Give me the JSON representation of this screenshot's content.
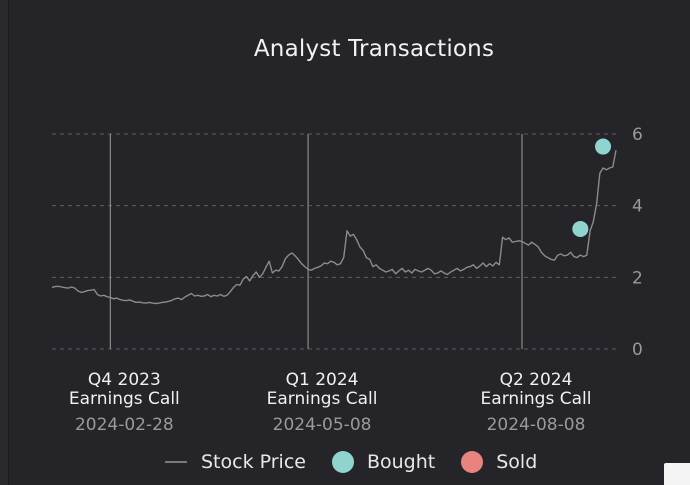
{
  "chart_data": {
    "type": "line",
    "title": "Analyst Transactions",
    "xlabel": "",
    "ylabel": "",
    "ylim": [
      0,
      6
    ],
    "yticks": [
      0,
      2,
      4,
      6
    ],
    "grid": "horizontal dashed",
    "legend_position": "bottom",
    "series": [
      {
        "name": "Stock Price",
        "color": "#8c8c8c",
        "values": [
          1.72,
          1.74,
          1.75,
          1.73,
          1.71,
          1.7,
          1.73,
          1.7,
          1.62,
          1.58,
          1.6,
          1.63,
          1.64,
          1.66,
          1.52,
          1.48,
          1.5,
          1.46,
          1.44,
          1.4,
          1.42,
          1.38,
          1.36,
          1.35,
          1.37,
          1.33,
          1.3,
          1.31,
          1.29,
          1.28,
          1.3,
          1.28,
          1.27,
          1.28,
          1.3,
          1.31,
          1.33,
          1.36,
          1.4,
          1.42,
          1.38,
          1.45,
          1.5,
          1.55,
          1.48,
          1.5,
          1.47,
          1.48,
          1.52,
          1.46,
          1.5,
          1.48,
          1.52,
          1.47,
          1.5,
          1.6,
          1.72,
          1.8,
          1.78,
          1.95,
          2.02,
          1.9,
          2.05,
          2.15,
          2.0,
          2.1,
          2.28,
          2.45,
          2.12,
          2.2,
          2.18,
          2.3,
          2.52,
          2.62,
          2.68,
          2.6,
          2.5,
          2.38,
          2.3,
          2.22,
          2.2,
          2.25,
          2.28,
          2.32,
          2.4,
          2.38,
          2.45,
          2.42,
          2.35,
          2.38,
          2.55,
          3.3,
          3.15,
          3.2,
          3.05,
          2.85,
          2.75,
          2.55,
          2.5,
          2.3,
          2.35,
          2.25,
          2.2,
          2.15,
          2.18,
          2.22,
          2.1,
          2.18,
          2.25,
          2.15,
          2.2,
          2.12,
          2.22,
          2.18,
          2.15,
          2.2,
          2.25,
          2.2,
          2.1,
          2.12,
          2.18,
          2.12,
          2.08,
          2.15,
          2.2,
          2.25,
          2.18,
          2.22,
          2.28,
          2.3,
          2.35,
          2.25,
          2.32,
          2.4,
          2.3,
          2.38,
          2.32,
          2.42,
          2.35,
          3.12,
          3.05,
          3.1,
          2.98,
          3.0,
          3.02,
          3.0,
          2.95,
          2.9,
          2.98,
          2.92,
          2.85,
          2.7,
          2.6,
          2.55,
          2.5,
          2.48,
          2.62,
          2.65,
          2.6,
          2.62,
          2.7,
          2.58,
          2.55,
          2.62,
          2.58,
          2.62,
          3.3,
          3.55,
          4.05,
          4.9,
          5.05,
          5.0,
          5.05,
          5.08,
          5.55
        ]
      },
      {
        "name": "Bought",
        "color": "#8fd4cf",
        "points": [
          {
            "index": 163,
            "value": 3.35
          },
          {
            "index": 170,
            "value": 5.65
          }
        ]
      },
      {
        "name": "Sold",
        "color": "#e8837f",
        "points": []
      }
    ],
    "events": [
      {
        "index": 18,
        "line1": "Q4 2023",
        "line2": "Earnings Call",
        "date": "2024-02-28"
      },
      {
        "index": 79,
        "line1": "Q1 2024",
        "line2": "Earnings Call",
        "date": "2024-05-08"
      },
      {
        "index": 145,
        "line1": "Q2 2024",
        "line2": "Earnings Call",
        "date": "2024-08-08"
      }
    ]
  },
  "legend": {
    "items": [
      {
        "label": "Stock Price",
        "kind": "line",
        "color": "#7a7a7a"
      },
      {
        "label": "Bought",
        "kind": "dot",
        "color": "#8fd4cf"
      },
      {
        "label": "Sold",
        "kind": "dot",
        "color": "#e8837f"
      }
    ]
  }
}
